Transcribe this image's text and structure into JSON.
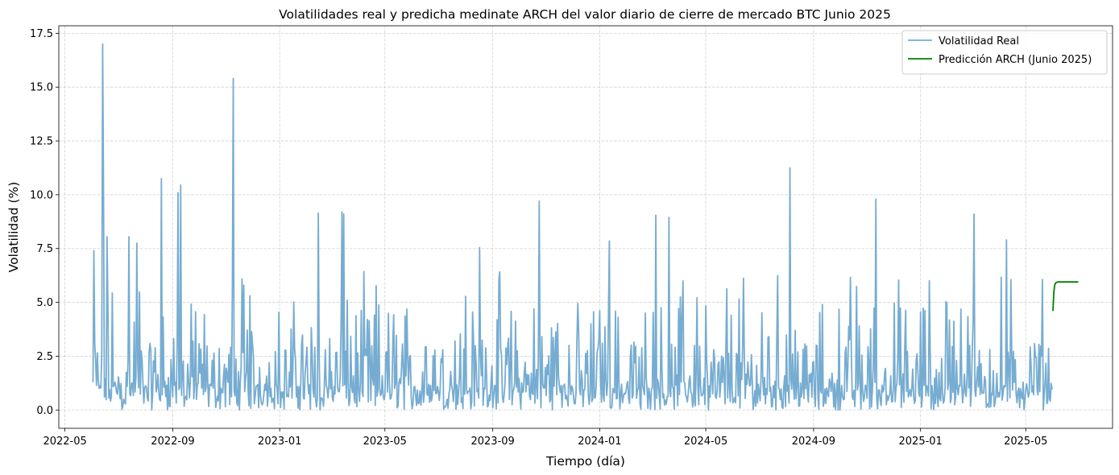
{
  "chart_data": {
    "type": "line",
    "title": "Volatilidades real y predicha medinate ARCH del valor diario de cierre de mercado BTC Junio 2025",
    "xlabel": "Tiempo (día)",
    "ylabel": "Volatilidad (%)",
    "xlim": [
      "2022-04-24",
      "2025-08-08"
    ],
    "ylim": [
      -0.85,
      17.85
    ],
    "x_ticks": [
      "2022-05-01",
      "2022-09-01",
      "2023-01-01",
      "2023-05-01",
      "2023-09-01",
      "2024-01-01",
      "2024-05-01",
      "2024-09-01",
      "2025-01-01",
      "2025-05-01"
    ],
    "x_tick_labels": [
      "2022-05",
      "2022-09",
      "2023-01",
      "2023-05",
      "2023-09",
      "2024-01",
      "2024-05",
      "2024-09",
      "2025-01",
      "2025-05"
    ],
    "y_ticks": [
      0,
      2.5,
      5,
      7.5,
      10,
      12.5,
      15,
      17.5
    ],
    "y_tick_labels": [
      "0.0",
      "2.5",
      "5.0",
      "7.5",
      "10.0",
      "12.5",
      "15.0",
      "17.5"
    ],
    "grid": true,
    "legend_position": "upper right",
    "series": [
      {
        "name": "Volatilidad Real",
        "color": "#76acd1",
        "x_start": "2022-06-02",
        "step_days": 1,
        "note_peaks": [
          {
            "x": "2022-06-03",
            "y": 7.4
          },
          {
            "x": "2022-06-13",
            "y": 17.0
          },
          {
            "x": "2022-06-14",
            "y": 10.2
          },
          {
            "x": "2022-06-18",
            "y": 8.05
          },
          {
            "x": "2022-07-13",
            "y": 8.05
          },
          {
            "x": "2022-07-22",
            "y": 7.75
          },
          {
            "x": "2022-08-19",
            "y": 10.75
          },
          {
            "x": "2022-09-07",
            "y": 10.1
          },
          {
            "x": "2022-09-10",
            "y": 10.45
          },
          {
            "x": "2022-11-09",
            "y": 15.4
          },
          {
            "x": "2023-02-14",
            "y": 9.15
          },
          {
            "x": "2023-03-13",
            "y": 9.2
          },
          {
            "x": "2023-03-15",
            "y": 9.1
          },
          {
            "x": "2023-08-17",
            "y": 7.55
          },
          {
            "x": "2023-10-24",
            "y": 9.7
          },
          {
            "x": "2024-01-12",
            "y": 7.85
          },
          {
            "x": "2024-03-05",
            "y": 9.05
          },
          {
            "x": "2024-03-20",
            "y": 8.95
          },
          {
            "x": "2024-08-05",
            "y": 11.25
          },
          {
            "x": "2024-11-11",
            "y": 9.8
          },
          {
            "x": "2025-03-03",
            "y": 9.1
          },
          {
            "x": "2025-04-09",
            "y": 7.9
          }
        ],
        "y_end": 0.95,
        "x_end": "2025-05-31"
      },
      {
        "name": "Predicción ARCH (Junio 2025)",
        "color": "#008000",
        "x": [
          "2025-06-01",
          "2025-06-02",
          "2025-06-03",
          "2025-06-04",
          "2025-06-05",
          "2025-06-06",
          "2025-06-07",
          "2025-06-08",
          "2025-06-10",
          "2025-06-15",
          "2025-06-20",
          "2025-06-25",
          "2025-06-30"
        ],
        "y": [
          4.6,
          5.45,
          5.8,
          5.9,
          5.93,
          5.94,
          5.95,
          5.95,
          5.95,
          5.95,
          5.95,
          5.95,
          5.95
        ]
      }
    ]
  }
}
